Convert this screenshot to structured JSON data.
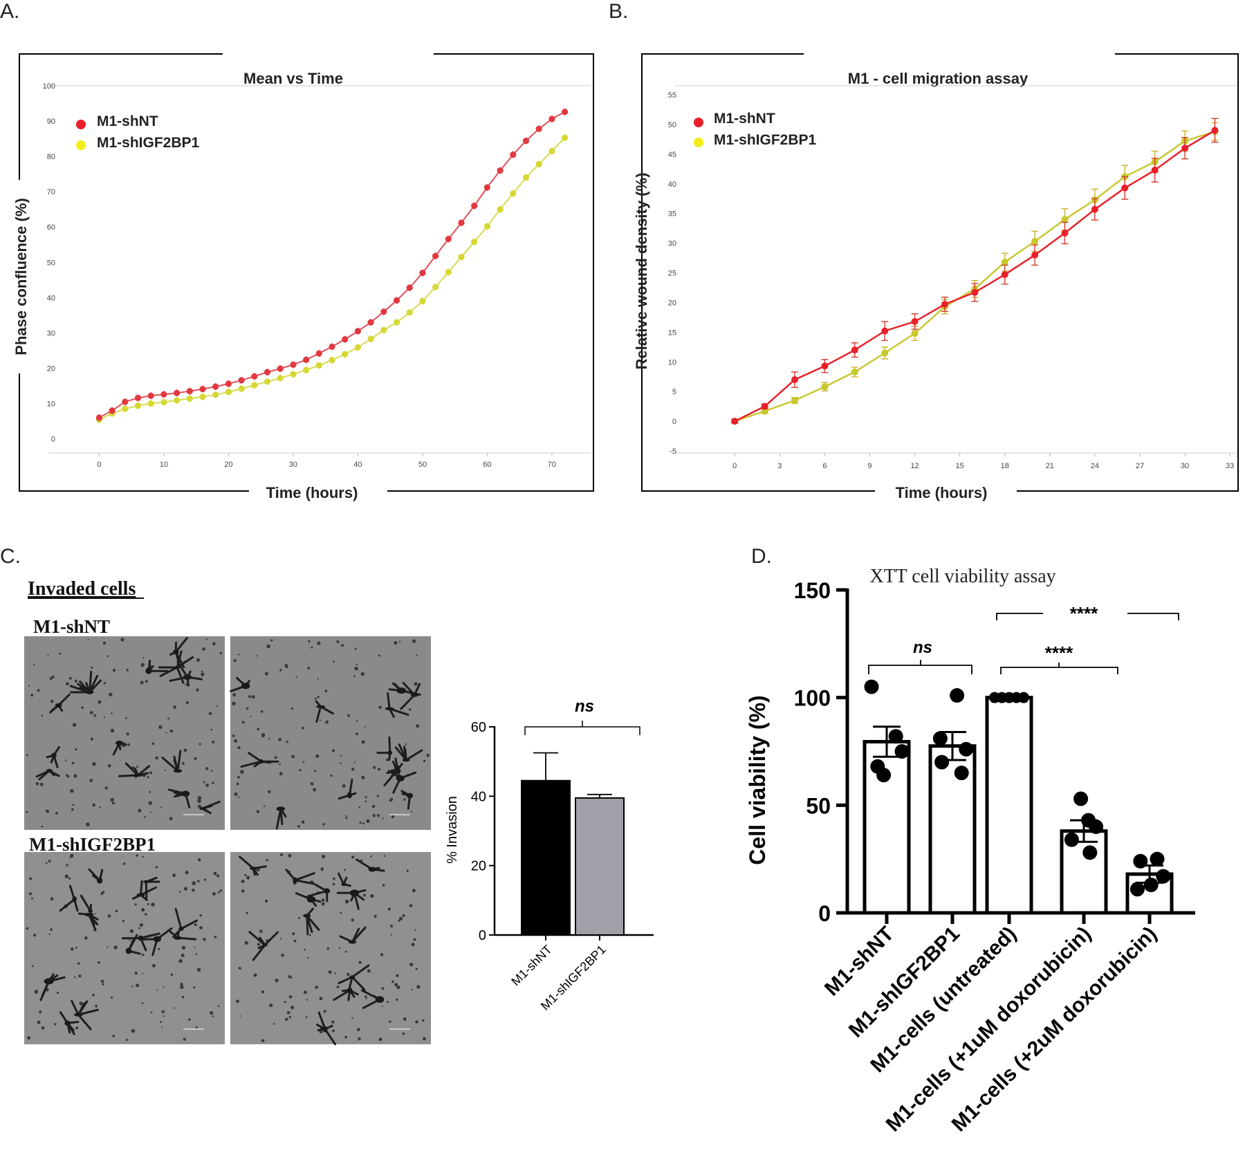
{
  "panels": {
    "a": "A.",
    "b": "B.",
    "c": "C.",
    "d": "D."
  },
  "colors": {
    "shNT": "#e8202a",
    "shIGF2BP1": "#f2ee1a",
    "lineA_shNT": "#e0505a",
    "lineA_shIGF": "#d8dc50",
    "lineB_shIGF": "#c8c830",
    "bar_shNT": "#000000",
    "bar_shIGF": "#a0a0a8"
  },
  "chart_data": [
    {
      "id": "A",
      "type": "line",
      "title": "Mean vs Time",
      "xlabel": "Time (hours)",
      "ylabel": "Phase confluence (%)",
      "xlim": [
        -4,
        76
      ],
      "ylim": [
        -4,
        100
      ],
      "xticks": [
        0,
        10,
        20,
        30,
        40,
        50,
        60,
        70
      ],
      "yticks": [
        0,
        10,
        20,
        30,
        40,
        50,
        60,
        70,
        80,
        90,
        100
      ],
      "legend_position": "top-left",
      "x": [
        0,
        2,
        4,
        6,
        8,
        10,
        12,
        14,
        16,
        18,
        20,
        22,
        24,
        26,
        28,
        30,
        32,
        34,
        36,
        38,
        40,
        42,
        44,
        46,
        48,
        50,
        52,
        54,
        56,
        58,
        60,
        62,
        64,
        66,
        68,
        70,
        72
      ],
      "series": [
        {
          "name": "M1-shNT",
          "values": [
            6,
            8,
            10.5,
            11.6,
            12.2,
            12.6,
            13,
            13.5,
            14.1,
            14.8,
            15.6,
            16.6,
            17.7,
            18.9,
            19.9,
            21,
            22.4,
            24.2,
            26.1,
            28.2,
            30.5,
            33,
            36,
            39.2,
            42.8,
            47,
            51.8,
            56.6,
            61.2,
            66,
            71.2,
            76,
            80.5,
            84.4,
            87.8,
            90.6,
            92.6
          ]
        },
        {
          "name": "M1-shIGF2BP1",
          "values": [
            5.4,
            7.2,
            8.5,
            9.4,
            10,
            10.4,
            10.9,
            11.4,
            11.9,
            12.5,
            13.3,
            14.2,
            15.2,
            16.2,
            17.2,
            18.3,
            19.5,
            20.8,
            22.3,
            24,
            25.9,
            28.3,
            30.8,
            33,
            35.8,
            39,
            43,
            47.2,
            51.5,
            55.8,
            60.2,
            65,
            69.5,
            74,
            77.8,
            81.5,
            85.3
          ]
        }
      ]
    },
    {
      "id": "B",
      "type": "line",
      "title": "M1 - cell migration assay",
      "xlabel": "Time (hours)",
      "ylabel": "Relative wound density  (%)",
      "xlim": [
        -2.5,
        33.5
      ],
      "ylim": [
        -5,
        55
      ],
      "xticks": [
        0,
        3,
        6,
        9,
        12,
        15,
        18,
        21,
        24,
        27,
        30,
        33
      ],
      "yticks": [
        -5,
        0,
        5,
        10,
        15,
        20,
        25,
        30,
        35,
        40,
        45,
        50,
        55
      ],
      "legend_position": "top-left",
      "x": [
        0,
        2,
        4,
        6,
        8,
        10,
        12,
        14,
        16,
        18,
        20,
        22,
        24,
        26,
        28,
        30,
        32
      ],
      "series": [
        {
          "name": "M1-shNT",
          "values": [
            0,
            2.5,
            7,
            9.3,
            12,
            15.2,
            16.8,
            19.7,
            21.7,
            24.7,
            28,
            31.7,
            35.7,
            39.3,
            42.3,
            46,
            49
          ],
          "errors": [
            0.3,
            0.4,
            1.3,
            1.1,
            1.2,
            1.6,
            1.3,
            1.2,
            1.5,
            1.6,
            1.7,
            1.8,
            1.8,
            1.9,
            2,
            1.8,
            2
          ]
        },
        {
          "name": "M1-shIGF2BP1",
          "values": [
            0,
            1.7,
            3.5,
            5.8,
            8.3,
            11.5,
            14.8,
            19.3,
            22.3,
            26.8,
            30.3,
            34,
            37.3,
            41.2,
            43.7,
            47.2,
            48.8
          ],
          "errors": [
            0.3,
            0.4,
            0.5,
            0.7,
            0.8,
            1,
            1.2,
            1.2,
            1.4,
            1.5,
            1.7,
            1.8,
            1.8,
            1.9,
            1.8,
            1.7,
            1.5
          ]
        }
      ]
    },
    {
      "id": "C",
      "type": "bar",
      "categories": [
        "M1-shNT",
        "M1-shIGF2BP1"
      ],
      "values": [
        44.5,
        39.5
      ],
      "errors": [
        8,
        1
      ],
      "ylabel": "% Invasion",
      "ylim": [
        0,
        60
      ],
      "yticks": [
        0,
        20,
        40,
        60
      ],
      "significance": "ns"
    },
    {
      "id": "D",
      "type": "bar",
      "title": "XTT cell viability assay",
      "categories": [
        "M1-shNT",
        "M1-shIGF2BP1",
        "M1-cells (untreated)",
        "M1-cells (+1uM doxorubicin)",
        "M1-cells (+2uM doxorubicin)"
      ],
      "values": [
        79.5,
        77.5,
        100,
        38,
        18
      ],
      "errors": [
        7,
        6.5,
        0,
        5,
        4
      ],
      "points": [
        [
          105,
          82,
          75,
          68,
          64
        ],
        [
          101,
          81,
          76,
          70,
          65
        ],
        [
          100,
          100,
          100,
          100,
          100
        ],
        [
          53,
          43,
          40,
          34,
          28
        ],
        [
          25,
          24,
          17,
          13,
          11
        ]
      ],
      "ylabel": "Cell viability (%)",
      "ylim": [
        0,
        150
      ],
      "yticks": [
        0,
        50,
        100,
        150
      ],
      "comparisons": [
        {
          "label": "ns",
          "from": 0,
          "to": 1
        },
        {
          "label": "****",
          "from": 2,
          "to": 3
        },
        {
          "label": "****",
          "from": 2,
          "to": 4
        }
      ]
    }
  ],
  "panelC": {
    "heading": "Invaded cells",
    "group1": "M1-shNT",
    "group2": "M1-shIGF2BP1"
  }
}
